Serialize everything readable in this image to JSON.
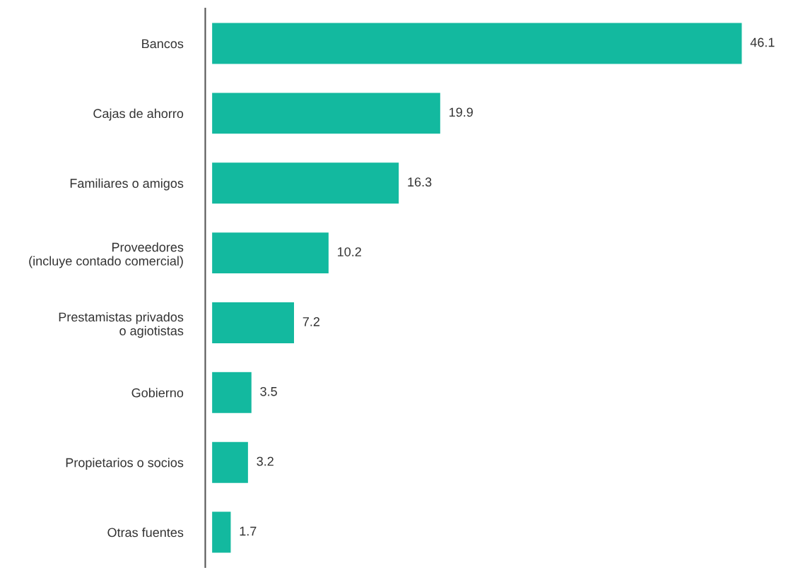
{
  "chart_data": {
    "type": "bar",
    "orientation": "horizontal",
    "categories": [
      "Bancos",
      "Cajas de ahorro",
      "Familiares o amigos",
      "Proveedores\n(incluye contado comercial)",
      "Prestamistas privados\no agiotistas",
      "Gobierno",
      "Propietarios o socios",
      "Otras fuentes"
    ],
    "values": [
      46.1,
      19.9,
      16.3,
      10.2,
      7.2,
      3.5,
      3.2,
      1.7
    ],
    "color": "#13b99f",
    "data_labels": true
  }
}
